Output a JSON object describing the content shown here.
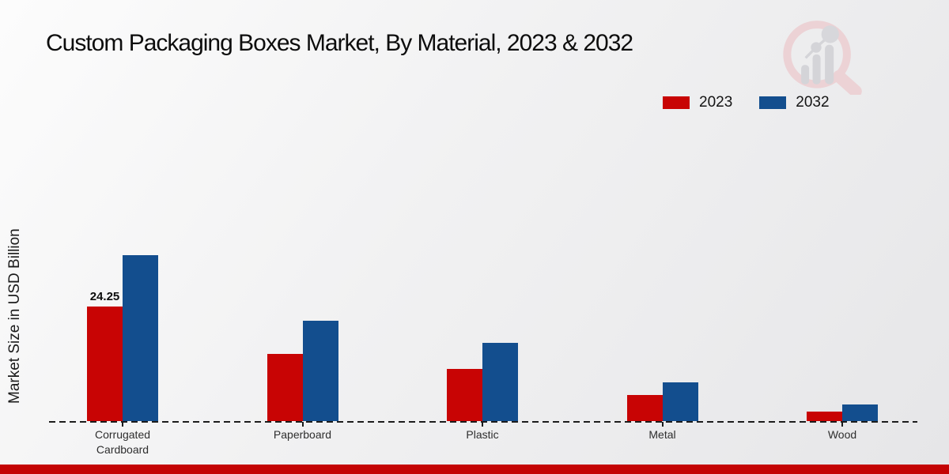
{
  "page": {
    "title": "Custom Packaging Boxes Market, By Material, 2023 & 2032",
    "footer_strip_color": "#c40404"
  },
  "legend": {
    "items": [
      {
        "label": "2023",
        "color": "#c80404"
      },
      {
        "label": "2032",
        "color": "#134e8e"
      }
    ]
  },
  "watermark_icon": "magnifier-bar-chart-logo",
  "chart_data": {
    "type": "bar",
    "title": "Custom Packaging Boxes Market, By Material, 2023 & 2032",
    "xlabel": "",
    "ylabel": "Market Size in USD Billion",
    "ylim": [
      0,
      40
    ],
    "grid": false,
    "legend_position": "top-right",
    "categories": [
      "Corrugated Cardboard",
      "Paperboard",
      "Plastic",
      "Metal",
      "Wood"
    ],
    "series": [
      {
        "name": "2023",
        "color": "#c80404",
        "values": [
          24.25,
          14.2,
          11.0,
          5.5,
          2.0
        ]
      },
      {
        "name": "2032",
        "color": "#134e8e",
        "values": [
          35.1,
          21.2,
          16.6,
          8.2,
          3.5
        ]
      }
    ],
    "annotations": [
      {
        "series": "2023",
        "category": "Corrugated Cardboard",
        "text": "24.25"
      }
    ]
  }
}
